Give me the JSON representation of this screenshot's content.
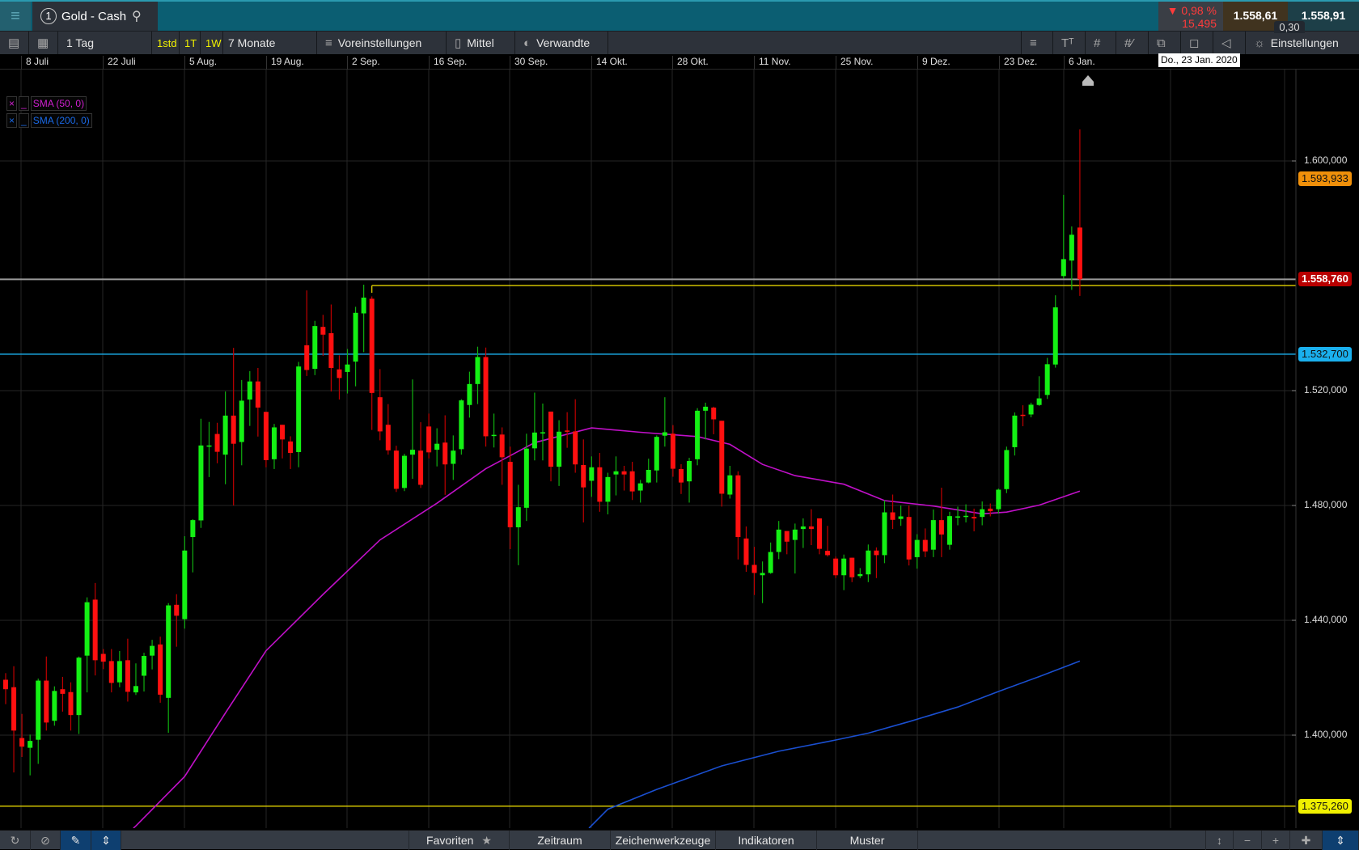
{
  "window": {
    "menu_icon": "hamburger-icon",
    "tab_number": "1",
    "instrument": "Gold - Cash",
    "search_icon": "search-icon"
  },
  "quote": {
    "change_arrow": "▼",
    "change_pct": "0,98 %",
    "change_abs": "15,495",
    "bid": "1.558,61",
    "ask": "1.558,91",
    "spread": "0,30",
    "bid_color": "#40331f",
    "ask_color": "#1d3f48",
    "down_color": "#ff3b3b"
  },
  "toolbar": {
    "interval": "1 Tag",
    "quick": [
      "1std",
      "1T",
      "1W"
    ],
    "range": "7 Monate",
    "presets": "Voreinstellungen",
    "chart_type": "Mittel",
    "related": "Verwandte",
    "settings": "Einstellungen"
  },
  "date_tooltip": "Do., 23 Jan. 2020",
  "legend": [
    {
      "label": "SMA (50, 0)",
      "color": "#d020d0",
      "remove": "×",
      "style": "_"
    },
    {
      "label": "SMA (200, 0)",
      "color": "#1a5fd8",
      "remove": "×",
      "style": "_"
    }
  ],
  "bottombar": {
    "favorites": "Favoriten",
    "period": "Zeitraum",
    "drawing": "Zeichenwerkzeuge",
    "indicators": "Indikatoren",
    "patterns": "Muster"
  },
  "chart_data": {
    "type": "candlestick",
    "title": "",
    "x_tick_labels": [
      "8 Juli",
      "22 Juli",
      "5 Aug.",
      "19 Aug.",
      "2 Sep.",
      "16 Sep.",
      "30 Sep.",
      "14 Okt.",
      "28 Okt.",
      "11 Nov.",
      "25 Nov.",
      "9 Dez.",
      "23 Dez.",
      "6 Jan."
    ],
    "y_tick_labels": [
      "1.600,000",
      "1.520,000",
      "1.480,000",
      "1.440,000",
      "1.400,000"
    ],
    "y_ticks": [
      1600,
      1520,
      1480,
      1440,
      1400
    ],
    "ylim": [
      1368,
      1632
    ],
    "grid": true,
    "up_color": "#14f014",
    "down_color": "#ff1010",
    "ohlc": [
      [
        1419.3,
        1421.6,
        1410.8,
        1416
      ],
      [
        1416.7,
        1424,
        1387,
        1401.6
      ],
      [
        1399,
        1407.4,
        1392.4,
        1396
      ],
      [
        1395.6,
        1400.2,
        1386,
        1398
      ],
      [
        1398.4,
        1419.7,
        1390,
        1419
      ],
      [
        1419,
        1427.4,
        1401.6,
        1404.4
      ],
      [
        1405,
        1417,
        1403.3,
        1415.4
      ],
      [
        1416,
        1420.3,
        1408.2,
        1414.4
      ],
      [
        1415,
        1418.4,
        1401.6,
        1407
      ],
      [
        1407,
        1427.4,
        1400.4,
        1427
      ],
      [
        1427.7,
        1448,
        1414.9,
        1446.3
      ],
      [
        1447.2,
        1453,
        1420.8,
        1426.1
      ],
      [
        1428.3,
        1430,
        1423,
        1425.6
      ],
      [
        1425.8,
        1430,
        1414.9,
        1418.2
      ],
      [
        1418.4,
        1429.3,
        1416.7,
        1425.8
      ],
      [
        1426.1,
        1433.6,
        1411.7,
        1415.1
      ],
      [
        1414.9,
        1425,
        1414,
        1417.1
      ],
      [
        1420.7,
        1428.7,
        1415.2,
        1427.6
      ],
      [
        1427.7,
        1433.2,
        1422.9,
        1431.1
      ],
      [
        1431.6,
        1434.3,
        1411.3,
        1414.1
      ],
      [
        1413,
        1446,
        1400.8,
        1445.2
      ],
      [
        1445.4,
        1449.1,
        1430.8,
        1441.6
      ],
      [
        1440.4,
        1469.3,
        1437.1,
        1464.3
      ],
      [
        1469,
        1475.2,
        1456.7,
        1474.9
      ],
      [
        1474.8,
        1510.2,
        1472.2,
        1500.9
      ],
      [
        1500.6,
        1509.1,
        1489.9,
        1500.9
      ],
      [
        1504.9,
        1508.8,
        1494.7,
        1498.7
      ],
      [
        1497.7,
        1519.7,
        1487.4,
        1511.3
      ],
      [
        1511.3,
        1534.9,
        1480,
        1501.5
      ],
      [
        1502.1,
        1523.7,
        1494,
        1516.5
      ],
      [
        1516.9,
        1526.8,
        1507.7,
        1523.2
      ],
      [
        1523.2,
        1527.9,
        1504,
        1514.1
      ],
      [
        1512.6,
        1512.6,
        1493.3,
        1495.8
      ],
      [
        1496.1,
        1508.4,
        1492.7,
        1507.2
      ],
      [
        1508.1,
        1508.1,
        1496.4,
        1503
      ],
      [
        1502.3,
        1504.1,
        1492.7,
        1498.3
      ],
      [
        1498.6,
        1530,
        1493.3,
        1528.4
      ],
      [
        1535.8,
        1554.9,
        1525.1,
        1527.2
      ],
      [
        1527.6,
        1544.3,
        1525.4,
        1542.5
      ],
      [
        1542.2,
        1546.4,
        1532.1,
        1539.5
      ],
      [
        1540,
        1550,
        1519.7,
        1527.9
      ],
      [
        1527.4,
        1532.3,
        1516.9,
        1524.4
      ],
      [
        1526.5,
        1534.5,
        1519,
        1529.1
      ],
      [
        1530.1,
        1549.2,
        1521.5,
        1547.1
      ],
      [
        1546.9,
        1556.9,
        1533.4,
        1552.4
      ],
      [
        1552,
        1552.8,
        1506.3,
        1519.2
      ],
      [
        1517.7,
        1527.5,
        1502.7,
        1505.8
      ],
      [
        1508.1,
        1515.3,
        1497.7,
        1499.2
      ],
      [
        1499.1,
        1500.8,
        1484.7,
        1485.8
      ],
      [
        1486.1,
        1498,
        1485,
        1497.3
      ],
      [
        1497.7,
        1523.9,
        1489.3,
        1499.4
      ],
      [
        1499.1,
        1509,
        1486.1,
        1487.2
      ],
      [
        1507.5,
        1512,
        1496.4,
        1498.5
      ],
      [
        1499.4,
        1506.9,
        1493.6,
        1501.5
      ],
      [
        1501.9,
        1511.4,
        1483.7,
        1494.3
      ],
      [
        1494.5,
        1504.4,
        1488.9,
        1499.1
      ],
      [
        1499.6,
        1517,
        1497.7,
        1516.6
      ],
      [
        1515,
        1526.6,
        1510.6,
        1522.3
      ],
      [
        1522.3,
        1535.3,
        1515.3,
        1531.7
      ],
      [
        1531.7,
        1535,
        1500.5,
        1504.1
      ],
      [
        1504.3,
        1512,
        1500.2,
        1504.6
      ],
      [
        1504.7,
        1507.2,
        1487.2,
        1496.8
      ],
      [
        1495.2,
        1500.5,
        1464.8,
        1472.4
      ],
      [
        1472.4,
        1487.2,
        1459.2,
        1479.4
      ],
      [
        1479.2,
        1505,
        1474.6,
        1499.8
      ],
      [
        1499.9,
        1519.3,
        1495.7,
        1505.4
      ],
      [
        1505.3,
        1515.5,
        1495.7,
        1505.5
      ],
      [
        1512.7,
        1512.7,
        1488.4,
        1493.5
      ],
      [
        1493.5,
        1509.7,
        1486.8,
        1505.7
      ],
      [
        1506.1,
        1512.5,
        1500.1,
        1505.9
      ],
      [
        1505.8,
        1517,
        1491.4,
        1494.3
      ],
      [
        1494.1,
        1503,
        1474.1,
        1486.3
      ],
      [
        1488.6,
        1497.1,
        1483,
        1493.3
      ],
      [
        1493.3,
        1498.3,
        1477.8,
        1481.3
      ],
      [
        1481.3,
        1491.4,
        1476.9,
        1489.9
      ],
      [
        1490.8,
        1497.1,
        1483.5,
        1491.9
      ],
      [
        1491.9,
        1493.8,
        1485.2,
        1490.8
      ],
      [
        1491.9,
        1495.2,
        1481.9,
        1484.9
      ],
      [
        1485.2,
        1488.9,
        1481,
        1487.7
      ],
      [
        1488,
        1496.3,
        1487.7,
        1492.4
      ],
      [
        1492.2,
        1504.4,
        1488,
        1503.9
      ],
      [
        1504.3,
        1517.7,
        1500.5,
        1505.5
      ],
      [
        1505,
        1508,
        1490,
        1492.8
      ],
      [
        1492.7,
        1494.4,
        1484,
        1488
      ],
      [
        1488.4,
        1496.6,
        1481,
        1495.5
      ],
      [
        1496.1,
        1513.9,
        1494,
        1513
      ],
      [
        1513,
        1515.8,
        1503,
        1514.4
      ],
      [
        1514.1,
        1514.4,
        1504.8,
        1510
      ],
      [
        1509.5,
        1509.5,
        1479.6,
        1484.1
      ],
      [
        1483.8,
        1493.8,
        1482.4,
        1490.5
      ],
      [
        1490.5,
        1491.9,
        1461.2,
        1469
      ],
      [
        1468.5,
        1472.7,
        1456.9,
        1459.3
      ],
      [
        1459.3,
        1465.6,
        1448.8,
        1456.5
      ],
      [
        1455.7,
        1460.5,
        1446,
        1456.5
      ],
      [
        1456.5,
        1467.1,
        1456.2,
        1463.8
      ],
      [
        1463.8,
        1474.6,
        1461.3,
        1471.6
      ],
      [
        1471.1,
        1471.1,
        1463,
        1467.4
      ],
      [
        1468,
        1473.7,
        1456.3,
        1471.6
      ],
      [
        1471.8,
        1475.5,
        1465.2,
        1472.7
      ],
      [
        1472.7,
        1478.7,
        1466.2,
        1471.8
      ],
      [
        1475.5,
        1475.5,
        1463,
        1464.9
      ],
      [
        1464.2,
        1472.9,
        1462.2,
        1462.7
      ],
      [
        1461.5,
        1462.2,
        1454.7,
        1455.7
      ],
      [
        1455.7,
        1462.9,
        1450.5,
        1461.5
      ],
      [
        1461.8,
        1461.8,
        1453.3,
        1455
      ],
      [
        1455.4,
        1458.2,
        1454.7,
        1456.1
      ],
      [
        1456,
        1466.4,
        1453.3,
        1464.3
      ],
      [
        1464.3,
        1465.4,
        1454.7,
        1462.7
      ],
      [
        1462.7,
        1481.8,
        1459.9,
        1477.6
      ],
      [
        1477.6,
        1483.8,
        1471.8,
        1475
      ],
      [
        1475.3,
        1480,
        1472.9,
        1476.2
      ],
      [
        1476,
        1480,
        1459.1,
        1461.2
      ],
      [
        1462,
        1470,
        1458,
        1468
      ],
      [
        1468,
        1472,
        1462,
        1464
      ],
      [
        1464.6,
        1478.6,
        1462,
        1474.9
      ],
      [
        1474.9,
        1486.2,
        1462,
        1469.9
      ],
      [
        1466.3,
        1477.8,
        1464.6,
        1476.3
      ],
      [
        1476,
        1479.6,
        1473.1,
        1476.2
      ],
      [
        1476.2,
        1480.4,
        1474.1,
        1476.4
      ],
      [
        1476,
        1478.9,
        1471,
        1475.5
      ],
      [
        1476,
        1481.4,
        1473.1,
        1478.7
      ],
      [
        1478.9,
        1480.7,
        1476.2,
        1478
      ],
      [
        1478.7,
        1485.9,
        1477.2,
        1485.5
      ],
      [
        1485.7,
        1500.5,
        1484.3,
        1499.3
      ],
      [
        1500.3,
        1512.4,
        1497.4,
        1511.3
      ],
      [
        1511.6,
        1514.9,
        1507.6,
        1511.3
      ],
      [
        1511.7,
        1515.8,
        1510.7,
        1515.1
      ],
      [
        1515,
        1525,
        1514.7,
        1517.3
      ],
      [
        1518.5,
        1531.4,
        1517.1,
        1529.2
      ],
      [
        1529.1,
        1553.2,
        1528,
        1549
      ],
      [
        1559.9,
        1588.2,
        1559,
        1565.8
      ],
      [
        1565.3,
        1577.2,
        1555.1,
        1574.3
      ],
      [
        1576.8,
        1611,
        1553,
        1558.8
      ]
    ],
    "sma": [
      {
        "name": "SMA (50, 0)",
        "color": "#c010c8",
        "points": [
          [
            10,
            1350
          ],
          [
            17,
            1368.4
          ],
          [
            23,
            1385.6
          ],
          [
            28,
            1407.7
          ],
          [
            33,
            1429.4
          ],
          [
            40,
            1449
          ],
          [
            47,
            1468
          ],
          [
            54,
            1480.8
          ],
          [
            60,
            1492.8
          ],
          [
            66,
            1501.9
          ],
          [
            73,
            1507
          ],
          [
            79,
            1505.5
          ],
          [
            86,
            1504
          ],
          [
            90,
            1501.3
          ],
          [
            94,
            1494.3
          ],
          [
            98,
            1490.4
          ],
          [
            104,
            1487.4
          ],
          [
            109,
            1481.7
          ],
          [
            115,
            1479.8
          ],
          [
            121,
            1477.1
          ],
          [
            124,
            1477.7
          ],
          [
            128,
            1480.1
          ],
          [
            133,
            1485
          ]
        ]
      },
      {
        "name": "SMA (200, 0)",
        "color": "#1a4fd0",
        "points": [
          [
            60,
            1345
          ],
          [
            70,
            1360
          ],
          [
            75,
            1374.2
          ],
          [
            81,
            1381.1
          ],
          [
            89,
            1389.3
          ],
          [
            96,
            1394.4
          ],
          [
            103,
            1398.3
          ],
          [
            107,
            1400.7
          ],
          [
            112,
            1404.7
          ],
          [
            118,
            1409.8
          ],
          [
            123,
            1415.2
          ],
          [
            128,
            1420.4
          ],
          [
            133,
            1425.8
          ]
        ]
      }
    ],
    "levels": [
      {
        "value": 1593.933,
        "label": "1.593,933",
        "color": "#f0900a",
        "line": false
      },
      {
        "value": 1558.76,
        "label": "1.558,760",
        "color": "#b80000",
        "line": true,
        "line_color": "#9a9a9a"
      },
      {
        "value": 1556.6,
        "label": "",
        "color": "#e0d000",
        "line": true,
        "line_color": "#e0d000",
        "from_candle": 45
      },
      {
        "value": 1532.7,
        "label": "1.532,700",
        "color": "#1ab0ee",
        "line": true,
        "line_color": "#1ab0ee"
      },
      {
        "value": 1375.26,
        "label": "1.375,260",
        "color": "#f0f000",
        "line": true,
        "line_color": "#e0d000"
      }
    ]
  }
}
